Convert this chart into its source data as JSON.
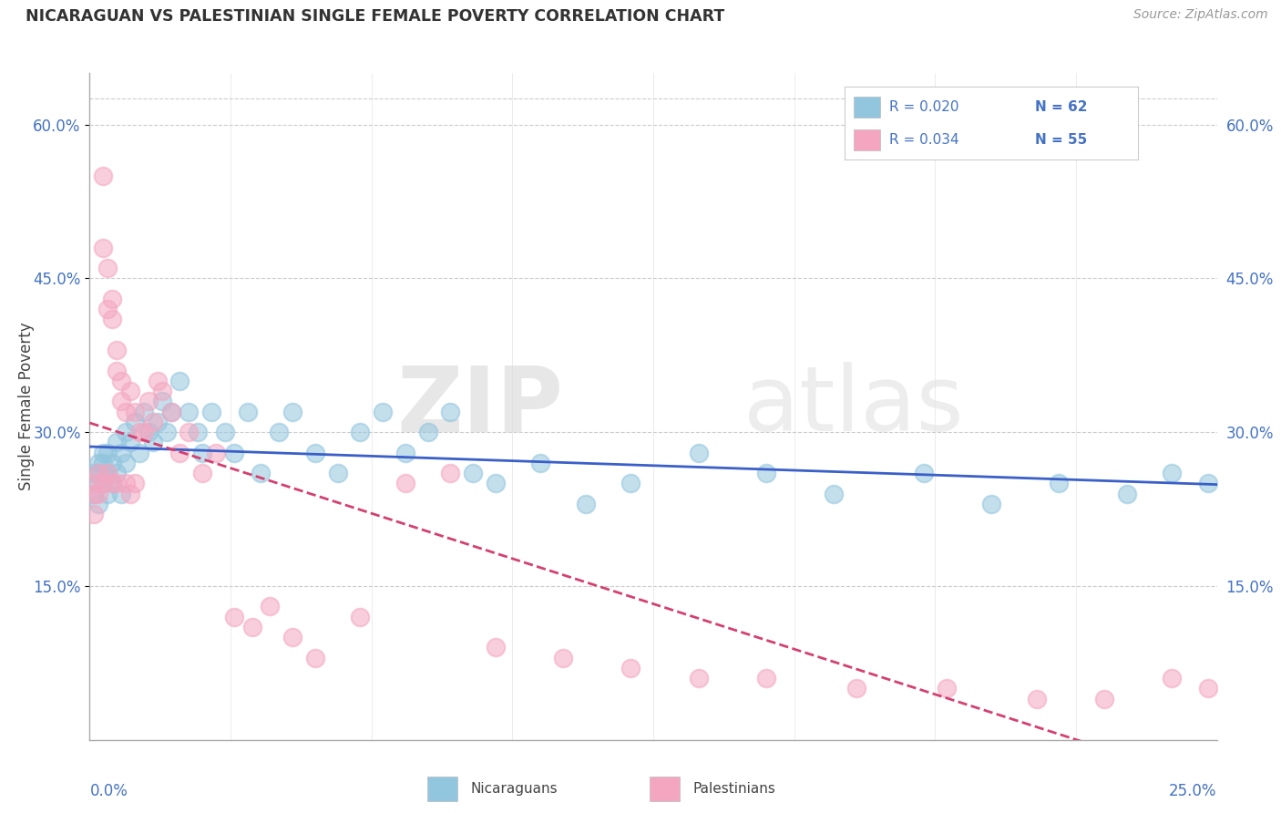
{
  "title": "NICARAGUAN VS PALESTINIAN SINGLE FEMALE POVERTY CORRELATION CHART",
  "source": "Source: ZipAtlas.com",
  "ylabel": "Single Female Poverty",
  "legend_r_nic": "R = 0.020",
  "legend_n_nic": "N = 62",
  "legend_r_pal": "R = 0.034",
  "legend_n_pal": "N = 55",
  "blue_color": "#92c5de",
  "pink_color": "#f4a6c0",
  "trend_blue": "#3a5fc8",
  "trend_pink": "#d44070",
  "watermark_zip": "ZIP",
  "watermark_atlas": "atlas",
  "xlim": [
    0.0,
    0.25
  ],
  "ylim": [
    0.0,
    0.65
  ],
  "yticks": [
    0.15,
    0.3,
    0.45,
    0.6
  ],
  "ytick_labels": [
    "15.0%",
    "30.0%",
    "45.0%",
    "60.0%"
  ],
  "nic_x": [
    0.001,
    0.001,
    0.001,
    0.002,
    0.002,
    0.002,
    0.003,
    0.003,
    0.003,
    0.004,
    0.004,
    0.004,
    0.005,
    0.005,
    0.006,
    0.006,
    0.007,
    0.007,
    0.008,
    0.008,
    0.009,
    0.01,
    0.011,
    0.012,
    0.013,
    0.014,
    0.015,
    0.016,
    0.017,
    0.018,
    0.02,
    0.022,
    0.024,
    0.025,
    0.027,
    0.03,
    0.032,
    0.035,
    0.038,
    0.042,
    0.045,
    0.05,
    0.055,
    0.06,
    0.065,
    0.07,
    0.075,
    0.08,
    0.085,
    0.09,
    0.1,
    0.11,
    0.12,
    0.135,
    0.15,
    0.165,
    0.185,
    0.2,
    0.215,
    0.23,
    0.24,
    0.248
  ],
  "nic_y": [
    0.26,
    0.25,
    0.24,
    0.27,
    0.26,
    0.23,
    0.28,
    0.25,
    0.27,
    0.26,
    0.24,
    0.28,
    0.27,
    0.25,
    0.29,
    0.26,
    0.28,
    0.24,
    0.3,
    0.27,
    0.29,
    0.31,
    0.28,
    0.32,
    0.3,
    0.29,
    0.31,
    0.33,
    0.3,
    0.32,
    0.35,
    0.32,
    0.3,
    0.28,
    0.32,
    0.3,
    0.28,
    0.32,
    0.26,
    0.3,
    0.32,
    0.28,
    0.26,
    0.3,
    0.32,
    0.28,
    0.3,
    0.32,
    0.26,
    0.25,
    0.27,
    0.23,
    0.25,
    0.28,
    0.26,
    0.24,
    0.26,
    0.23,
    0.25,
    0.24,
    0.26,
    0.25
  ],
  "pal_x": [
    0.001,
    0.001,
    0.001,
    0.002,
    0.002,
    0.003,
    0.003,
    0.003,
    0.004,
    0.004,
    0.004,
    0.005,
    0.005,
    0.005,
    0.006,
    0.006,
    0.006,
    0.007,
    0.007,
    0.008,
    0.008,
    0.009,
    0.009,
    0.01,
    0.01,
    0.011,
    0.012,
    0.013,
    0.014,
    0.015,
    0.016,
    0.018,
    0.02,
    0.022,
    0.025,
    0.028,
    0.032,
    0.036,
    0.04,
    0.045,
    0.05,
    0.06,
    0.07,
    0.08,
    0.09,
    0.105,
    0.12,
    0.135,
    0.15,
    0.17,
    0.19,
    0.21,
    0.225,
    0.24,
    0.248
  ],
  "pal_y": [
    0.25,
    0.24,
    0.22,
    0.26,
    0.24,
    0.55,
    0.48,
    0.25,
    0.46,
    0.42,
    0.26,
    0.43,
    0.41,
    0.25,
    0.38,
    0.36,
    0.25,
    0.35,
    0.33,
    0.32,
    0.25,
    0.34,
    0.24,
    0.32,
    0.25,
    0.3,
    0.3,
    0.33,
    0.31,
    0.35,
    0.34,
    0.32,
    0.28,
    0.3,
    0.26,
    0.28,
    0.12,
    0.11,
    0.13,
    0.1,
    0.08,
    0.12,
    0.25,
    0.26,
    0.09,
    0.08,
    0.07,
    0.06,
    0.06,
    0.05,
    0.05,
    0.04,
    0.04,
    0.06,
    0.05
  ]
}
